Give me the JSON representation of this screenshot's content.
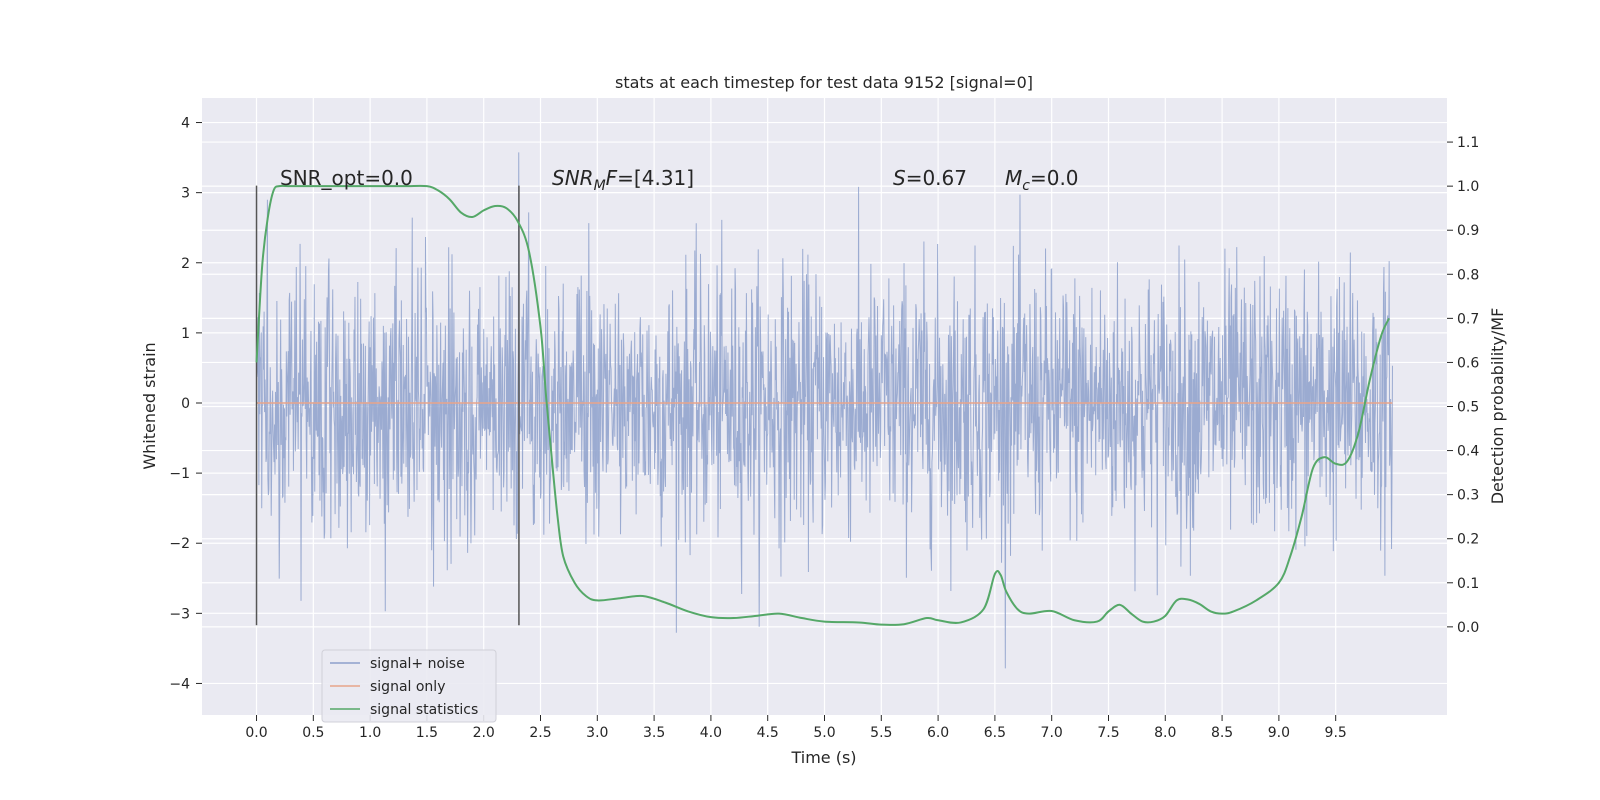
{
  "chart_data": {
    "type": "line",
    "title": "stats at each timestep for test data 9152 [signal=0]",
    "xlabel": "Time (s)",
    "ylabel_left": "Whitened strain",
    "ylabel_right": "Detection probability/MF",
    "xlim": [
      -0.48,
      10.48
    ],
    "ylim_left": [
      -4.45,
      4.35
    ],
    "ylim_right": [
      -0.2,
      1.2
    ],
    "x_ticks": [
      "0.0",
      "0.5",
      "1.0",
      "1.5",
      "2.0",
      "2.5",
      "3.0",
      "3.5",
      "4.0",
      "4.5",
      "5.0",
      "5.5",
      "6.0",
      "6.5",
      "7.0",
      "7.5",
      "8.0",
      "8.5",
      "9.0",
      "9.5"
    ],
    "y_left_ticks": [
      "4",
      "3",
      "2",
      "1",
      "0",
      "−1",
      "−2",
      "−3",
      "−4"
    ],
    "y_left_tick_values": [
      4,
      3,
      2,
      1,
      0,
      -1,
      -2,
      -3,
      -4
    ],
    "y_right_ticks": [
      "1.1",
      "1.0",
      "0.9",
      "0.8",
      "0.7",
      "0.6",
      "0.5",
      "0.4",
      "0.3",
      "0.2",
      "0.1",
      "0.0"
    ],
    "y_right_tick_values": [
      1.1,
      1.0,
      0.9,
      0.8,
      0.7,
      0.6,
      0.5,
      0.4,
      0.3,
      0.2,
      0.1,
      0.0
    ],
    "grid": true,
    "legend_position": "lower-left",
    "colors": {
      "background": "#eaeaf2",
      "grid": "#ffffff",
      "signal_noise": "#8da0cb",
      "signal_only": "#e8a48a",
      "statistics": "#55a868",
      "vline": "#555555"
    },
    "annotations": {
      "snr_opt": "SNR_opt=0.0",
      "snr_mf_sym": "SNR",
      "snr_mf_sub": "M",
      "snr_mf_sym2": "F",
      "snr_mf_val": "=[4.31]",
      "s_sym": "S",
      "s_val": "=0.67",
      "mc_sym": "M",
      "mc_sub": "c",
      "mc_val": "=0.0"
    },
    "vertical_lines": [
      {
        "x": 0.0,
        "y_range": [
          -3.17,
          3.1
        ]
      },
      {
        "x": 2.31,
        "y_range": [
          -3.17,
          3.1
        ]
      }
    ],
    "series": [
      {
        "name": "signal+ noise",
        "axis": "left",
        "x_range": [
          0.0,
          10.0
        ],
        "envelope_typical": [
          -1.6,
          1.6
        ],
        "envelope_peak": [
          -4.05,
          3.95
        ]
      },
      {
        "name": "signal only",
        "axis": "left",
        "x": [
          0.0,
          10.0
        ],
        "y": [
          0.0,
          0.0
        ]
      },
      {
        "name": "signal statistics",
        "axis": "right",
        "x": [
          0.0,
          0.05,
          0.1,
          0.15,
          0.2,
          0.3,
          0.5,
          0.8,
          1.0,
          1.3,
          1.5,
          1.6,
          1.7,
          1.8,
          1.9,
          2.0,
          2.1,
          2.2,
          2.3,
          2.4,
          2.5,
          2.55,
          2.6,
          2.65,
          2.7,
          2.8,
          2.9,
          3.0,
          3.2,
          3.4,
          3.6,
          3.8,
          4.0,
          4.2,
          4.4,
          4.6,
          4.8,
          5.0,
          5.3,
          5.5,
          5.7,
          5.9,
          6.0,
          6.2,
          6.4,
          6.5,
          6.55,
          6.6,
          6.7,
          6.8,
          7.0,
          7.2,
          7.4,
          7.5,
          7.6,
          7.7,
          7.8,
          7.9,
          8.0,
          8.1,
          8.2,
          8.3,
          8.4,
          8.5,
          8.6,
          8.8,
          9.0,
          9.1,
          9.2,
          9.3,
          9.4,
          9.5,
          9.6,
          9.7,
          9.8,
          9.9,
          9.97
        ],
        "y": [
          0.6,
          0.82,
          0.93,
          0.99,
          1.0,
          1.0,
          1.0,
          1.0,
          1.0,
          1.0,
          1.0,
          0.99,
          0.97,
          0.94,
          0.93,
          0.945,
          0.955,
          0.95,
          0.92,
          0.85,
          0.68,
          0.52,
          0.38,
          0.25,
          0.16,
          0.1,
          0.07,
          0.06,
          0.065,
          0.07,
          0.055,
          0.035,
          0.022,
          0.02,
          0.025,
          0.03,
          0.02,
          0.012,
          0.01,
          0.005,
          0.006,
          0.02,
          0.015,
          0.01,
          0.04,
          0.12,
          0.118,
          0.08,
          0.04,
          0.03,
          0.036,
          0.015,
          0.012,
          0.035,
          0.05,
          0.03,
          0.012,
          0.012,
          0.025,
          0.06,
          0.062,
          0.052,
          0.035,
          0.03,
          0.035,
          0.06,
          0.1,
          0.16,
          0.25,
          0.36,
          0.385,
          0.37,
          0.375,
          0.44,
          0.56,
          0.66,
          0.7
        ]
      }
    ]
  }
}
